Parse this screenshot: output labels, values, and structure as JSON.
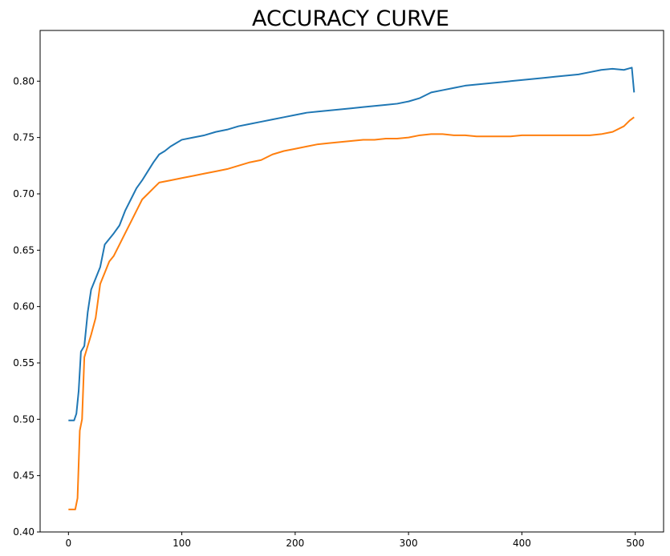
{
  "chart_data": {
    "type": "line",
    "title": "ACCURACY CURVE",
    "xlabel": "",
    "ylabel": "",
    "xlim": [
      -25,
      525
    ],
    "ylim": [
      0.4,
      0.845
    ],
    "xticks": [
      0,
      100,
      200,
      300,
      400,
      500
    ],
    "yticks": [
      0.4,
      0.45,
      0.5,
      0.55,
      0.6,
      0.65,
      0.7,
      0.75,
      0.8
    ],
    "xtick_labels": [
      "0",
      "100",
      "200",
      "300",
      "400",
      "500"
    ],
    "ytick_labels": [
      "0.40",
      "0.45",
      "0.50",
      "0.55",
      "0.60",
      "0.65",
      "0.70",
      "0.75",
      "0.80"
    ],
    "grid": false,
    "legend": "none",
    "series": [
      {
        "color": "#1f77b4",
        "points": [
          [
            0,
            0.499
          ],
          [
            5,
            0.499
          ],
          [
            7,
            0.505
          ],
          [
            9,
            0.525
          ],
          [
            11,
            0.56
          ],
          [
            14,
            0.565
          ],
          [
            17,
            0.595
          ],
          [
            20,
            0.615
          ],
          [
            24,
            0.625
          ],
          [
            28,
            0.635
          ],
          [
            32,
            0.655
          ],
          [
            36,
            0.66
          ],
          [
            40,
            0.665
          ],
          [
            45,
            0.672
          ],
          [
            50,
            0.685
          ],
          [
            55,
            0.695
          ],
          [
            60,
            0.705
          ],
          [
            65,
            0.712
          ],
          [
            70,
            0.72
          ],
          [
            75,
            0.728
          ],
          [
            80,
            0.735
          ],
          [
            85,
            0.738
          ],
          [
            90,
            0.742
          ],
          [
            95,
            0.745
          ],
          [
            100,
            0.748
          ],
          [
            110,
            0.75
          ],
          [
            120,
            0.752
          ],
          [
            130,
            0.755
          ],
          [
            140,
            0.757
          ],
          [
            150,
            0.76
          ],
          [
            160,
            0.762
          ],
          [
            170,
            0.764
          ],
          [
            180,
            0.766
          ],
          [
            190,
            0.768
          ],
          [
            200,
            0.77
          ],
          [
            210,
            0.772
          ],
          [
            220,
            0.773
          ],
          [
            230,
            0.774
          ],
          [
            240,
            0.775
          ],
          [
            250,
            0.776
          ],
          [
            260,
            0.777
          ],
          [
            270,
            0.778
          ],
          [
            280,
            0.779
          ],
          [
            290,
            0.78
          ],
          [
            300,
            0.782
          ],
          [
            310,
            0.785
          ],
          [
            320,
            0.79
          ],
          [
            330,
            0.792
          ],
          [
            340,
            0.794
          ],
          [
            350,
            0.796
          ],
          [
            360,
            0.797
          ],
          [
            370,
            0.798
          ],
          [
            380,
            0.799
          ],
          [
            390,
            0.8
          ],
          [
            400,
            0.801
          ],
          [
            410,
            0.802
          ],
          [
            420,
            0.803
          ],
          [
            430,
            0.804
          ],
          [
            440,
            0.805
          ],
          [
            450,
            0.806
          ],
          [
            460,
            0.808
          ],
          [
            470,
            0.81
          ],
          [
            480,
            0.811
          ],
          [
            490,
            0.81
          ],
          [
            497,
            0.812
          ],
          [
            499,
            0.79
          ]
        ]
      },
      {
        "color": "#ff7f0e",
        "points": [
          [
            0,
            0.42
          ],
          [
            6,
            0.42
          ],
          [
            8,
            0.43
          ],
          [
            10,
            0.49
          ],
          [
            12,
            0.5
          ],
          [
            14,
            0.555
          ],
          [
            17,
            0.565
          ],
          [
            20,
            0.575
          ],
          [
            24,
            0.59
          ],
          [
            28,
            0.62
          ],
          [
            32,
            0.63
          ],
          [
            36,
            0.64
          ],
          [
            40,
            0.645
          ],
          [
            45,
            0.655
          ],
          [
            50,
            0.665
          ],
          [
            55,
            0.675
          ],
          [
            60,
            0.685
          ],
          [
            65,
            0.695
          ],
          [
            70,
            0.7
          ],
          [
            75,
            0.705
          ],
          [
            80,
            0.71
          ],
          [
            90,
            0.712
          ],
          [
            100,
            0.714
          ],
          [
            110,
            0.716
          ],
          [
            120,
            0.718
          ],
          [
            130,
            0.72
          ],
          [
            140,
            0.722
          ],
          [
            150,
            0.725
          ],
          [
            160,
            0.728
          ],
          [
            170,
            0.73
          ],
          [
            180,
            0.735
          ],
          [
            190,
            0.738
          ],
          [
            200,
            0.74
          ],
          [
            210,
            0.742
          ],
          [
            220,
            0.744
          ],
          [
            230,
            0.745
          ],
          [
            240,
            0.746
          ],
          [
            250,
            0.747
          ],
          [
            260,
            0.748
          ],
          [
            270,
            0.748
          ],
          [
            280,
            0.749
          ],
          [
            290,
            0.749
          ],
          [
            300,
            0.75
          ],
          [
            310,
            0.752
          ],
          [
            320,
            0.753
          ],
          [
            330,
            0.753
          ],
          [
            340,
            0.752
          ],
          [
            350,
            0.752
          ],
          [
            360,
            0.751
          ],
          [
            370,
            0.751
          ],
          [
            380,
            0.751
          ],
          [
            390,
            0.751
          ],
          [
            400,
            0.752
          ],
          [
            410,
            0.752
          ],
          [
            420,
            0.752
          ],
          [
            430,
            0.752
          ],
          [
            440,
            0.752
          ],
          [
            450,
            0.752
          ],
          [
            460,
            0.752
          ],
          [
            470,
            0.753
          ],
          [
            480,
            0.755
          ],
          [
            490,
            0.76
          ],
          [
            495,
            0.765
          ],
          [
            499,
            0.768
          ]
        ]
      }
    ]
  }
}
